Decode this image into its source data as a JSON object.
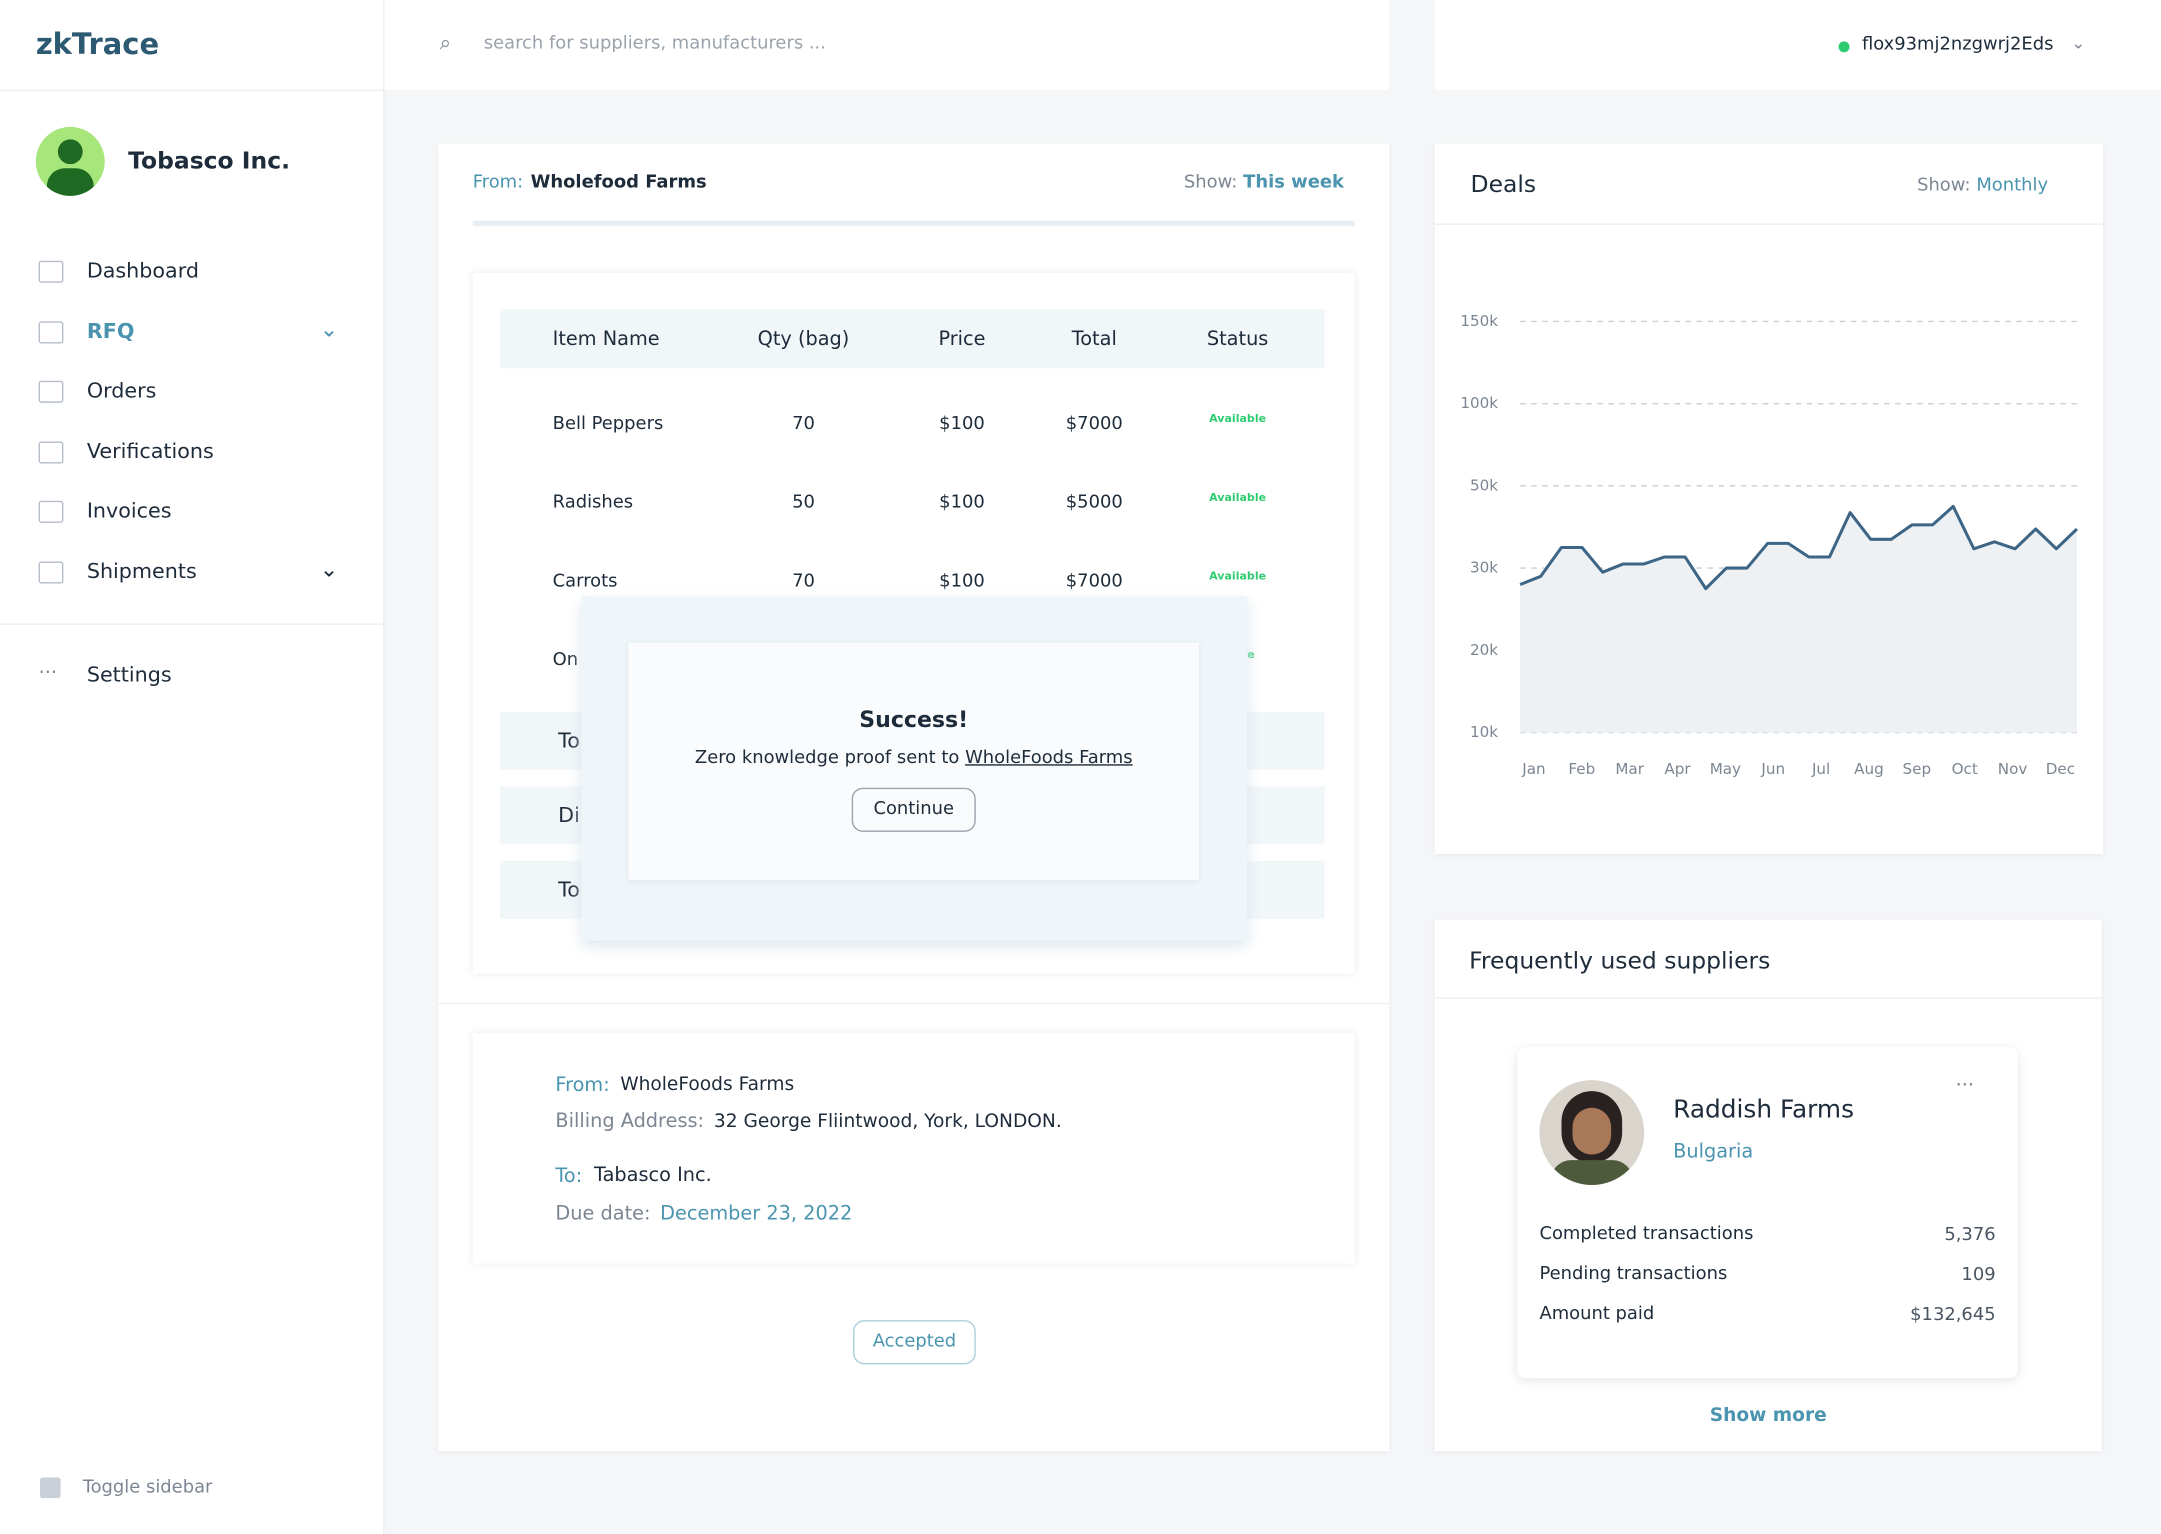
{
  "brand": "zkTrace",
  "search_placeholder": "search for suppliers, manufacturers ...",
  "wallet": "flox93mj2nzgwrj2Eds",
  "user": "Tobasco Inc.",
  "nav": [
    "Dashboard",
    "RFQ",
    "Orders",
    "Verifications",
    "Invoices",
    "Shipments"
  ],
  "settings": "Settings",
  "toggle": "Toggle sidebar",
  "rfq": {
    "from_label": "From:",
    "from": "Wholefood Farms",
    "show_label": "Show:",
    "show": "This week",
    "table": {
      "headers": [
        "Item Name",
        "Qty (bag)",
        "Price",
        "Total",
        "Status"
      ],
      "rows": [
        [
          "Bell Peppers",
          "70",
          "$100",
          "$7000",
          "Available"
        ],
        [
          "Radishes",
          "50",
          "$100",
          "$5000",
          "Available"
        ],
        [
          "Carrots",
          "70",
          "$100",
          "$7000",
          "Available"
        ],
        [
          "On",
          "",
          "",
          "",
          "ilable"
        ]
      ],
      "summary": [
        "To",
        "Di",
        "To"
      ]
    }
  },
  "modal": {
    "title": "Success!",
    "text": "Zero knowledge proof sent to",
    "link": "WholeFoods Farms",
    "button": "Continue"
  },
  "invoice": {
    "from_label": "From:",
    "from": "WholeFoods Farms",
    "billing_label": "Billing Address:",
    "billing": "32 George Fliintwood, York, LONDON.",
    "to_label": "To:",
    "to": "Tabasco Inc.",
    "due_label": "Due date:",
    "due": "December 23, 2022",
    "status": "Accepted"
  },
  "chart_data": {
    "type": "line",
    "title": "Deals",
    "show_label": "Show:",
    "show": "Monthly",
    "xticks": [
      "Jan",
      "Feb",
      "Mar",
      "Apr",
      "May",
      "Jun",
      "Jul",
      "Aug",
      "Sep",
      "Oct",
      "Nov",
      "Dec"
    ],
    "yticks": [
      {
        "value": 10000,
        "label": "10k"
      },
      {
        "value": 20000,
        "label": "20k"
      },
      {
        "value": 30000,
        "label": "30k"
      },
      {
        "value": 50000,
        "label": "50k"
      },
      {
        "value": 100000,
        "label": "100k"
      },
      {
        "value": 150000,
        "label": "150k"
      }
    ],
    "ylim": [
      10000,
      150000
    ],
    "grid": true,
    "series": [
      {
        "name": "Deals",
        "color": "#3d6585",
        "values": [
          28000,
          29000,
          35000,
          35000,
          29500,
          31000,
          31000,
          32700,
          32700,
          27500,
          30000,
          30000,
          36000,
          36000,
          32700,
          32700,
          43500,
          37000,
          37000,
          40500,
          40500,
          45000,
          34700,
          36400,
          34700,
          39500,
          34700,
          39500
        ]
      }
    ]
  },
  "suppliers": {
    "title": "Frequently used suppliers",
    "name": "Raddish Farms",
    "country": "Bulgaria",
    "stats": [
      [
        "Completed transactions",
        "5,376"
      ],
      [
        "Pending transactions",
        "109"
      ],
      [
        "Amount paid",
        "$132,645"
      ]
    ],
    "more": "Show more"
  }
}
